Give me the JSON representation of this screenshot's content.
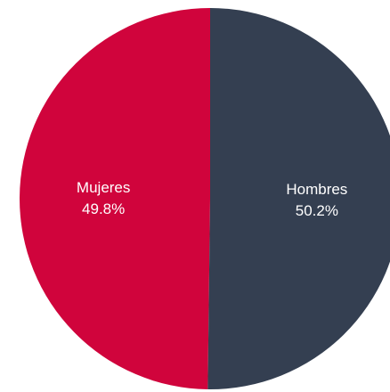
{
  "chart_data": {
    "type": "pie",
    "title": "",
    "slices": [
      {
        "label": "Mujeres",
        "value": 49.8,
        "value_label": "49.8%",
        "color": "#d0043c"
      },
      {
        "label": "Hombres",
        "value": 50.2,
        "value_label": "50.2%",
        "color": "#343f51"
      }
    ],
    "start_angle_deg": 0,
    "direction": "counterclockwise"
  }
}
